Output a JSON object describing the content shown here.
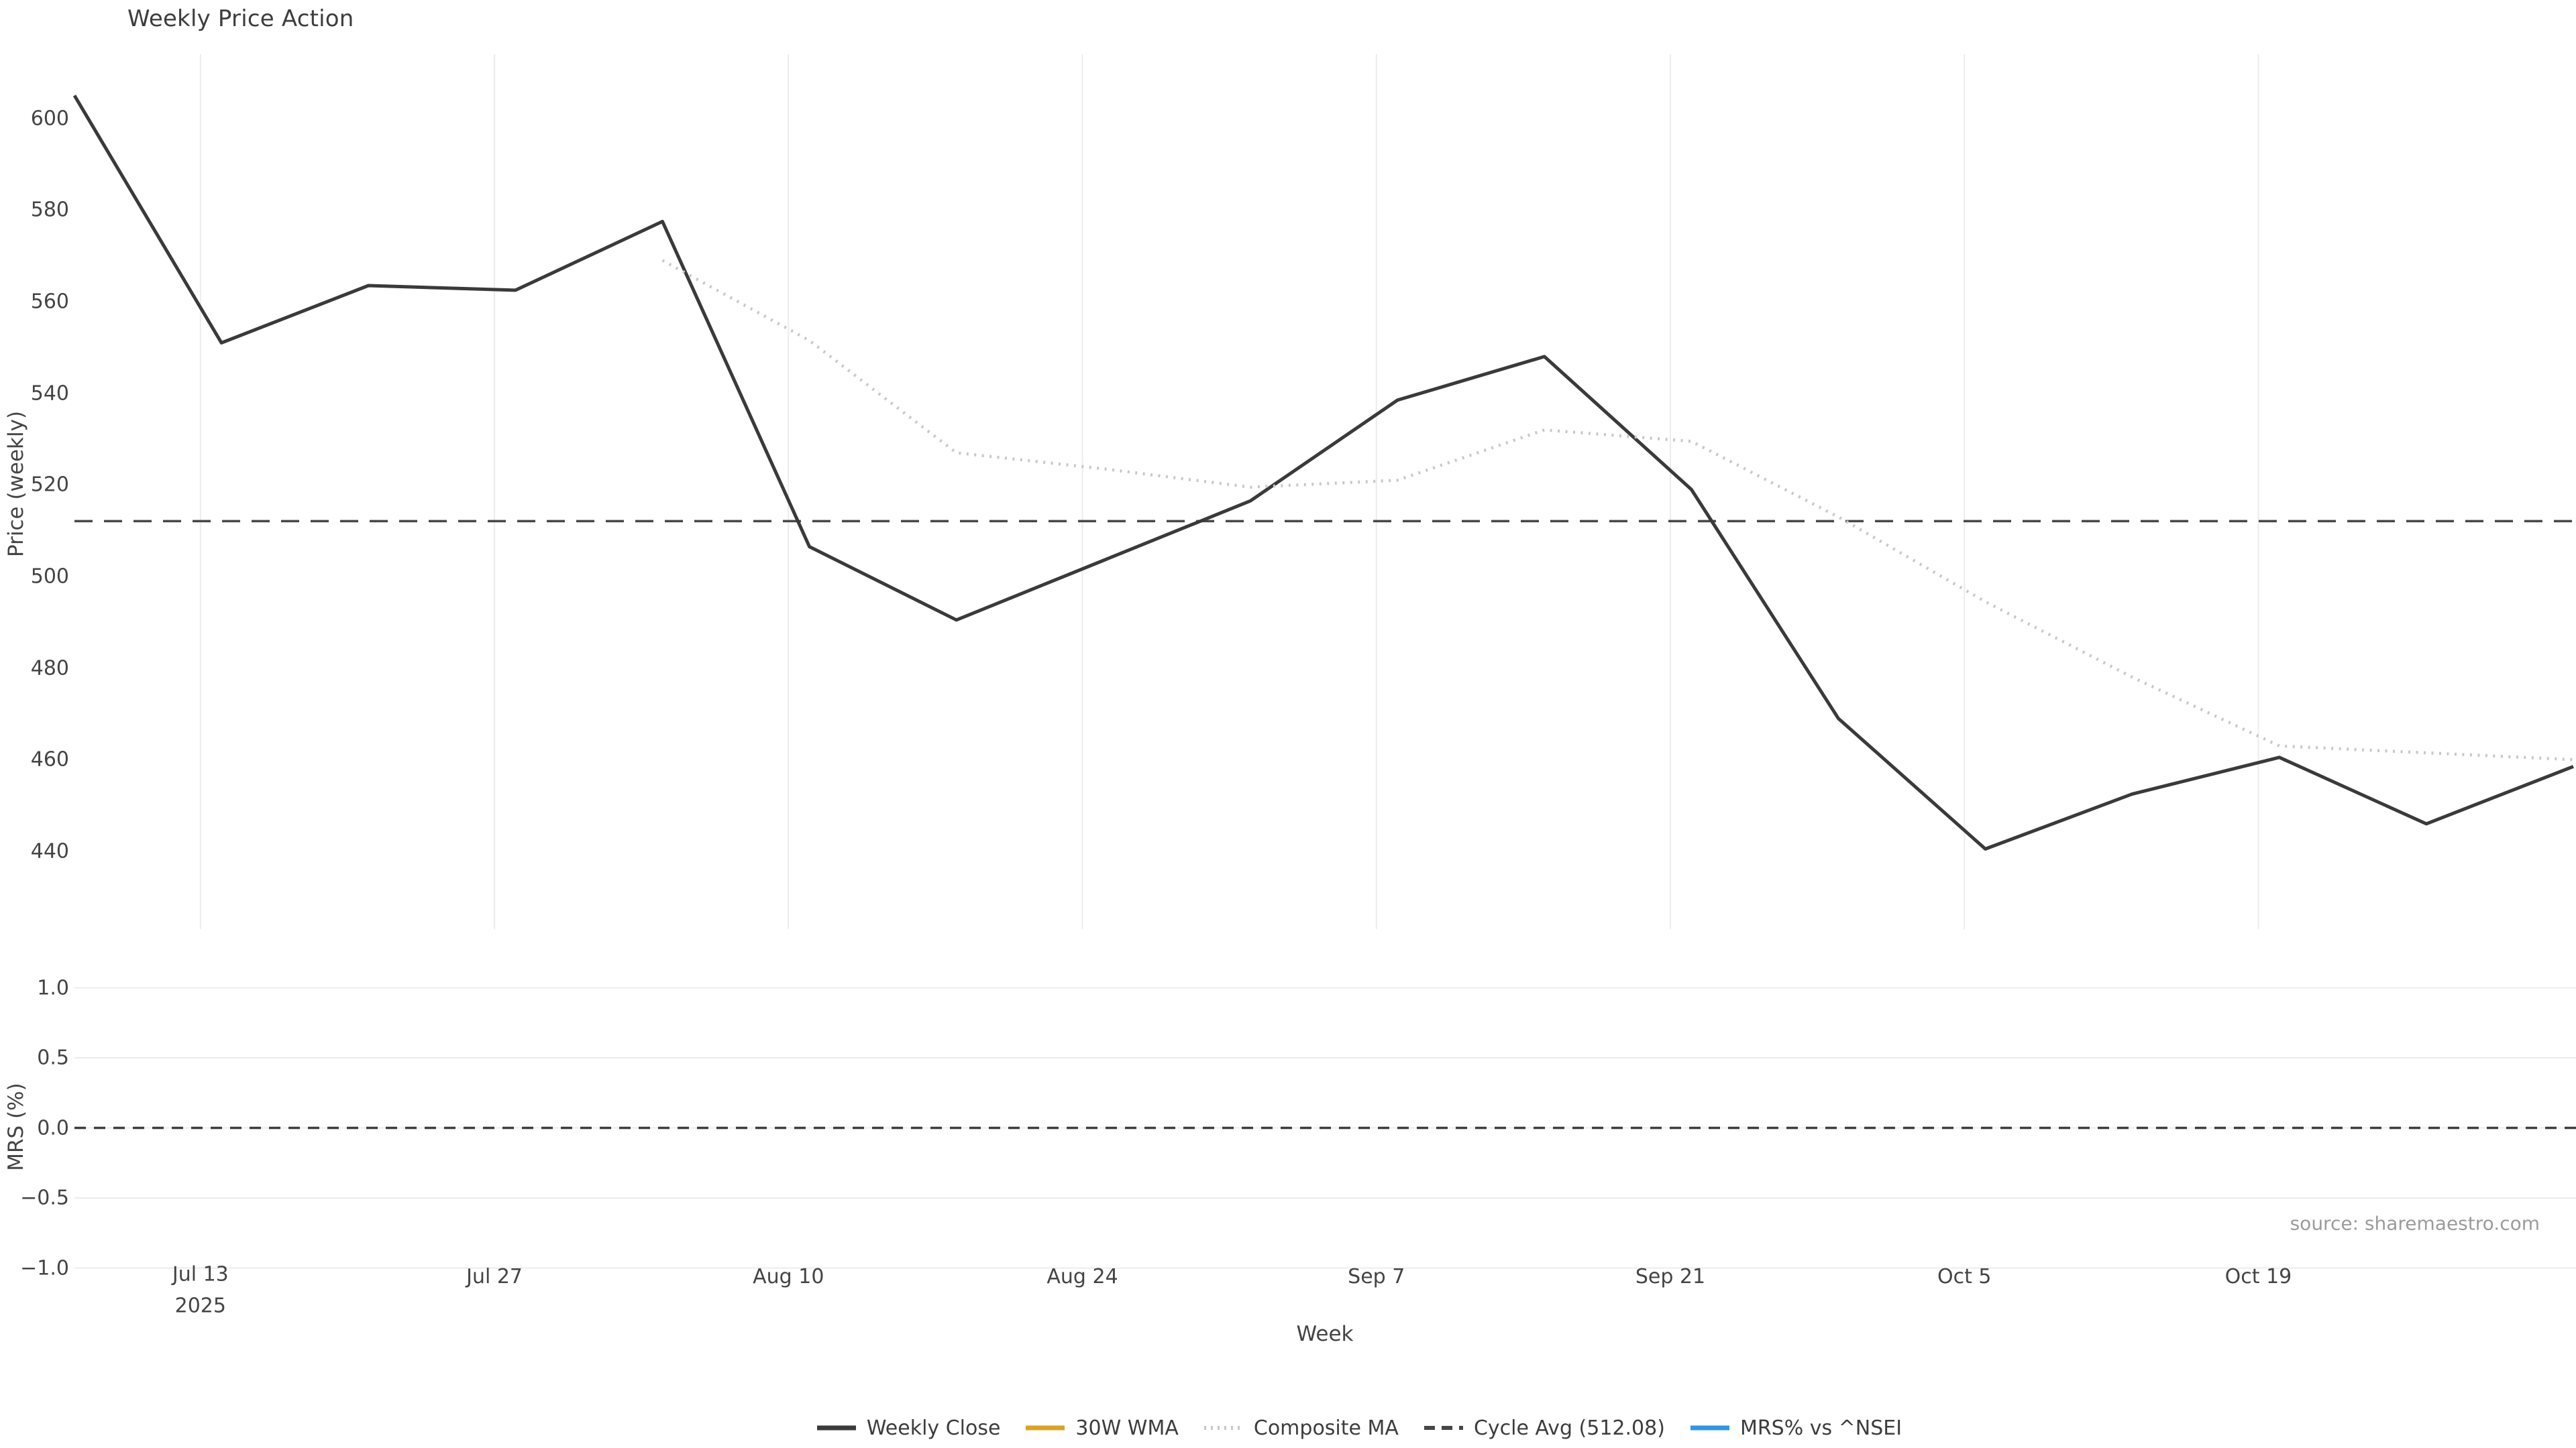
{
  "title": "Weekly Price Action",
  "source_note": "source: sharemaestro.com",
  "legend": [
    {
      "label": "Weekly Close",
      "color": "#3a3a3a",
      "style": "solid"
    },
    {
      "label": "30W WMA",
      "color": "#d9a425",
      "style": "solid"
    },
    {
      "label": "Composite MA",
      "color": "#c8c8c8",
      "style": "dotted"
    },
    {
      "label": "Cycle Avg (512.08)",
      "color": "#474747",
      "style": "dashed"
    },
    {
      "label": "MRS% vs ^NSEI",
      "color": "#2f96e3",
      "style": "solid"
    }
  ],
  "colors": {
    "background": "#ffffff",
    "grid": "#ececec",
    "text": "#444444",
    "title_text": "#3d3d3d",
    "source_text": "#9b9b9b",
    "weekly_close": "#3a3a3a",
    "wma_30w": "#d9a425",
    "composite_ma": "#c8c8c8",
    "cycle_avg": "#474747",
    "mrs_line": "#2f96e3"
  },
  "chart_data": [
    {
      "type": "line",
      "panel": "price",
      "title": "Weekly Price Action",
      "xlabel": "Week",
      "ylabel": "Price (weekly)",
      "x_dates": [
        "2025-07-07",
        "2025-07-14",
        "2025-07-21",
        "2025-07-28",
        "2025-08-04",
        "2025-08-11",
        "2025-08-18",
        "2025-08-25",
        "2025-09-01",
        "2025-09-08",
        "2025-09-15",
        "2025-09-22",
        "2025-09-29",
        "2025-10-06",
        "2025-10-13",
        "2025-10-20",
        "2025-10-27",
        "2025-11-03"
      ],
      "series": [
        {
          "name": "Weekly Close",
          "style": "solid",
          "color": "#3a3a3a",
          "values": [
            605,
            551,
            563.5,
            562.5,
            577.5,
            506.5,
            490.5,
            503.5,
            516.5,
            538.5,
            548,
            519,
            469,
            440.5,
            452.5,
            460.5,
            446,
            458.5
          ]
        },
        {
          "name": "30W WMA",
          "style": "solid",
          "color": "#d9a425",
          "values": [
            null,
            null,
            null,
            null,
            null,
            null,
            null,
            null,
            null,
            null,
            null,
            null,
            null,
            null,
            null,
            null,
            null,
            null
          ]
        },
        {
          "name": "Composite MA",
          "style": "dotted",
          "color": "#c8c8c8",
          "values": [
            null,
            null,
            null,
            null,
            569,
            551.5,
            527,
            523.5,
            519.5,
            521,
            532,
            529.5,
            513,
            494.5,
            478,
            463,
            461.5,
            460
          ]
        }
      ],
      "reference_line": {
        "name": "Cycle Avg",
        "value": 512.08,
        "style": "dashed",
        "color": "#474747"
      },
      "ylim": [
        423,
        614
      ],
      "yticks": [
        440,
        460,
        480,
        500,
        520,
        540,
        560,
        580,
        600
      ],
      "xticks": [
        {
          "label": "Jul 13",
          "sub": "2025",
          "day": 6
        },
        {
          "label": "Jul 27",
          "sub": "",
          "day": 20
        },
        {
          "label": "Aug 10",
          "sub": "",
          "day": 34
        },
        {
          "label": "Aug 24",
          "sub": "",
          "day": 48
        },
        {
          "label": "Sep 7",
          "sub": "",
          "day": 62
        },
        {
          "label": "Sep 21",
          "sub": "",
          "day": 76
        },
        {
          "label": "Oct 5",
          "sub": "",
          "day": 90
        },
        {
          "label": "Oct 19",
          "sub": "",
          "day": 104
        }
      ],
      "x_span_days": 119,
      "grid": "vertical",
      "legend_position": "bottom-center"
    },
    {
      "type": "line",
      "panel": "mrs",
      "xlabel": "Week",
      "ylabel": "MRS (%)",
      "series": [
        {
          "name": "MRS% vs ^NSEI",
          "style": "solid",
          "color": "#2f96e3",
          "values": []
        }
      ],
      "reference_line": {
        "name": "zero",
        "value": 0.0,
        "style": "dashed",
        "color": "#3d3d3d"
      },
      "ylim": [
        -1.0,
        1.3
      ],
      "yticks": [
        1.0,
        0.5,
        0.0,
        -0.5,
        -1.0
      ],
      "ytick_labels": [
        "1.0",
        "0.5",
        "0.0",
        "−0.5",
        "−1.0"
      ],
      "grid": "horizontal"
    }
  ]
}
